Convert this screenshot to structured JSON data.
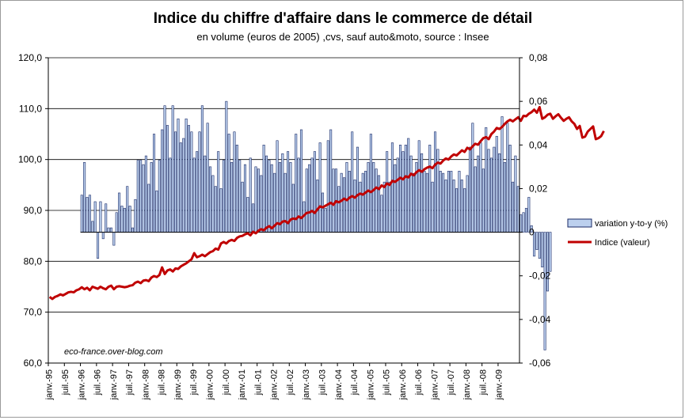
{
  "chart_data": {
    "type": "bar+line",
    "title": "Indice du chiffre d'affaire dans le commerce de détail",
    "subtitle": "en volume (euros de 2005) ,cvs, sauf auto&moto, source : Insee",
    "watermark": "eco-france.over-blog.com",
    "left_axis": {
      "ylim": [
        60,
        120
      ],
      "ticks": [
        "60,0",
        "70,0",
        "80,0",
        "90,0",
        "100,0",
        "110,0",
        "120,0"
      ]
    },
    "right_axis": {
      "ylim": [
        -0.06,
        0.08
      ],
      "ticks": [
        "-0,06",
        "-0,04",
        "-0,02",
        "0",
        "0,02",
        "0,04",
        "0,06",
        "0,08"
      ]
    },
    "x_ticks": [
      "janv.-95",
      "juil.-95",
      "janv.-96",
      "juil.-96",
      "janv.-97",
      "juil.-97",
      "janv.-98",
      "juil.-98",
      "janv.-99",
      "juil.-99",
      "janv.-00",
      "juil.-00",
      "janv.-01",
      "juil.-01",
      "janv.-02",
      "juil.-02",
      "janv.-03",
      "juil.-03",
      "janv.-04",
      "juil.-04",
      "janv.-05",
      "juil.-05",
      "janv.-06",
      "juil.-06",
      "janv.-07",
      "juil.-07",
      "janv.-08",
      "juil.-08",
      "janv.-09"
    ],
    "legend_position": "right",
    "grid": "horizontal",
    "series": [
      {
        "name": "variation y-to-y  (%)",
        "axis": "right",
        "kind": "bar",
        "color": "#bcd0ee",
        "edge_color": "#1a2a66",
        "start": "janv.-96",
        "values": [
          0.017,
          0.032,
          0.016,
          0.017,
          0.005,
          0.014,
          -0.012,
          0.014,
          -0.003,
          0.013,
          0.002,
          0.002,
          -0.006,
          0.009,
          0.018,
          0.012,
          0.011,
          0.021,
          0.012,
          0.002,
          0.015,
          0.033,
          0.033,
          0.031,
          0.035,
          0.022,
          0.032,
          0.045,
          0.019,
          0.033,
          0.047,
          0.058,
          0.049,
          0.034,
          0.058,
          0.046,
          0.052,
          0.041,
          0.043,
          0.052,
          0.049,
          0.046,
          0.034,
          0.037,
          0.046,
          0.058,
          0.035,
          0.05,
          0.03,
          0.026,
          0.021,
          0.037,
          0.02,
          0.033,
          0.06,
          0.045,
          0.032,
          0.046,
          0.04,
          0.033,
          0.023,
          0.031,
          0.016,
          0.034,
          0.013,
          0.03,
          0.029,
          0.026,
          0.04,
          0.035,
          0.033,
          0.031,
          0.027,
          0.042,
          0.032,
          0.036,
          0.027,
          0.037,
          0.032,
          0.022,
          0.045,
          0.034,
          0.047,
          0.014,
          0.029,
          0.031,
          0.034,
          0.037,
          0.024,
          0.041,
          0.018,
          0.011,
          0.042,
          0.047,
          0.029,
          0.029,
          0.021,
          0.027,
          0.025,
          0.032,
          0.028,
          0.046,
          0.024,
          0.039,
          0.023,
          0.027,
          0.028,
          0.032,
          0.045,
          0.032,
          0.029,
          0.026,
          0.017,
          0.023,
          0.037,
          0.023,
          0.041,
          0.031,
          0.034,
          0.04,
          0.037,
          0.04,
          0.043,
          0.035,
          0.027,
          0.032,
          0.042,
          0.036,
          0.028,
          0.027,
          0.04,
          0.023,
          0.046,
          0.038,
          0.028,
          0.027,
          0.024,
          0.028,
          0.028,
          0.024,
          0.02,
          0.028,
          0.024,
          0.02,
          0.026,
          0.039,
          0.05,
          0.03,
          0.035,
          0.041,
          0.029,
          0.048,
          0.038,
          0.034,
          0.039,
          0.044,
          0.036,
          0.053,
          0.032,
          0.05,
          0.04,
          0.023,
          0.035,
          0.021,
          0.008,
          0.009,
          0.011,
          0.016,
          0.003,
          -0.011,
          -0.008,
          -0.012,
          -0.016,
          -0.054,
          -0.027,
          -0.018
        ]
      },
      {
        "name": "Indice (valeur)",
        "axis": "left",
        "kind": "line",
        "color": "#c00000",
        "start": "janv.-95",
        "values": [
          73.0,
          72.6,
          73.0,
          73.2,
          73.5,
          73.3,
          73.6,
          73.9,
          74.0,
          73.9,
          74.3,
          74.5,
          74.9,
          74.5,
          74.8,
          74.3,
          75.0,
          74.8,
          74.6,
          75.0,
          74.7,
          74.5,
          75.0,
          75.2,
          74.5,
          75.0,
          75.1,
          75.0,
          74.9,
          75.0,
          75.2,
          75.3,
          75.8,
          76.0,
          75.7,
          76.2,
          76.3,
          76.1,
          76.8,
          77.1,
          76.9,
          77.3,
          78.8,
          77.5,
          78.2,
          78.4,
          78.0,
          78.6,
          78.5,
          79.0,
          79.3,
          79.6,
          80.0,
          80.4,
          81.6,
          80.8,
          81.0,
          81.3,
          81.0,
          81.4,
          81.8,
          82.0,
          82.5,
          82.3,
          83.5,
          83.8,
          83.5,
          84.0,
          84.2,
          84.0,
          84.6,
          84.9,
          85.0,
          85.3,
          85.5,
          85.1,
          85.8,
          85.5,
          86.0,
          86.3,
          86.1,
          86.6,
          86.9,
          86.5,
          87.0,
          87.5,
          87.3,
          87.8,
          87.9,
          87.5,
          88.2,
          88.4,
          88.3,
          88.8,
          88.5,
          89.0,
          89.5,
          89.6,
          89.9,
          89.5,
          90.2,
          90.8,
          90.6,
          90.9,
          91.2,
          91.5,
          91.1,
          91.8,
          91.6,
          91.9,
          92.3,
          92.0,
          92.5,
          92.8,
          92.5,
          93.0,
          93.3,
          93.1,
          93.5,
          93.9,
          93.6,
          94.0,
          94.5,
          94.2,
          94.9,
          94.6,
          95.3,
          95.0,
          95.8,
          95.6,
          96.0,
          96.4,
          96.1,
          96.7,
          96.5,
          97.2,
          96.9,
          97.5,
          97.9,
          97.6,
          98.1,
          98.4,
          98.6,
          98.3,
          99.0,
          99.4,
          99.2,
          99.8,
          100.2,
          100.0,
          100.6,
          101.0,
          100.8,
          101.3,
          101.8,
          101.5,
          102.3,
          102.0,
          102.6,
          103.1,
          102.9,
          103.6,
          104.2,
          104.4,
          104.0,
          105.0,
          105.5,
          106.2,
          106.0,
          106.4,
          107.0,
          107.5,
          107.8,
          107.5,
          107.9,
          108.3,
          107.6,
          108.6,
          108.5,
          109.0,
          109.3,
          109.8,
          109.2,
          110.3,
          108.0,
          108.3,
          108.8,
          109.0,
          108.0,
          108.5,
          108.9,
          108.2,
          107.6,
          108.0,
          108.3,
          107.5,
          107.0,
          106.0,
          106.6,
          104.3,
          104.5,
          105.5,
          106.0,
          106.5,
          104.0,
          104.2,
          104.6,
          105.6
        ]
      }
    ]
  }
}
